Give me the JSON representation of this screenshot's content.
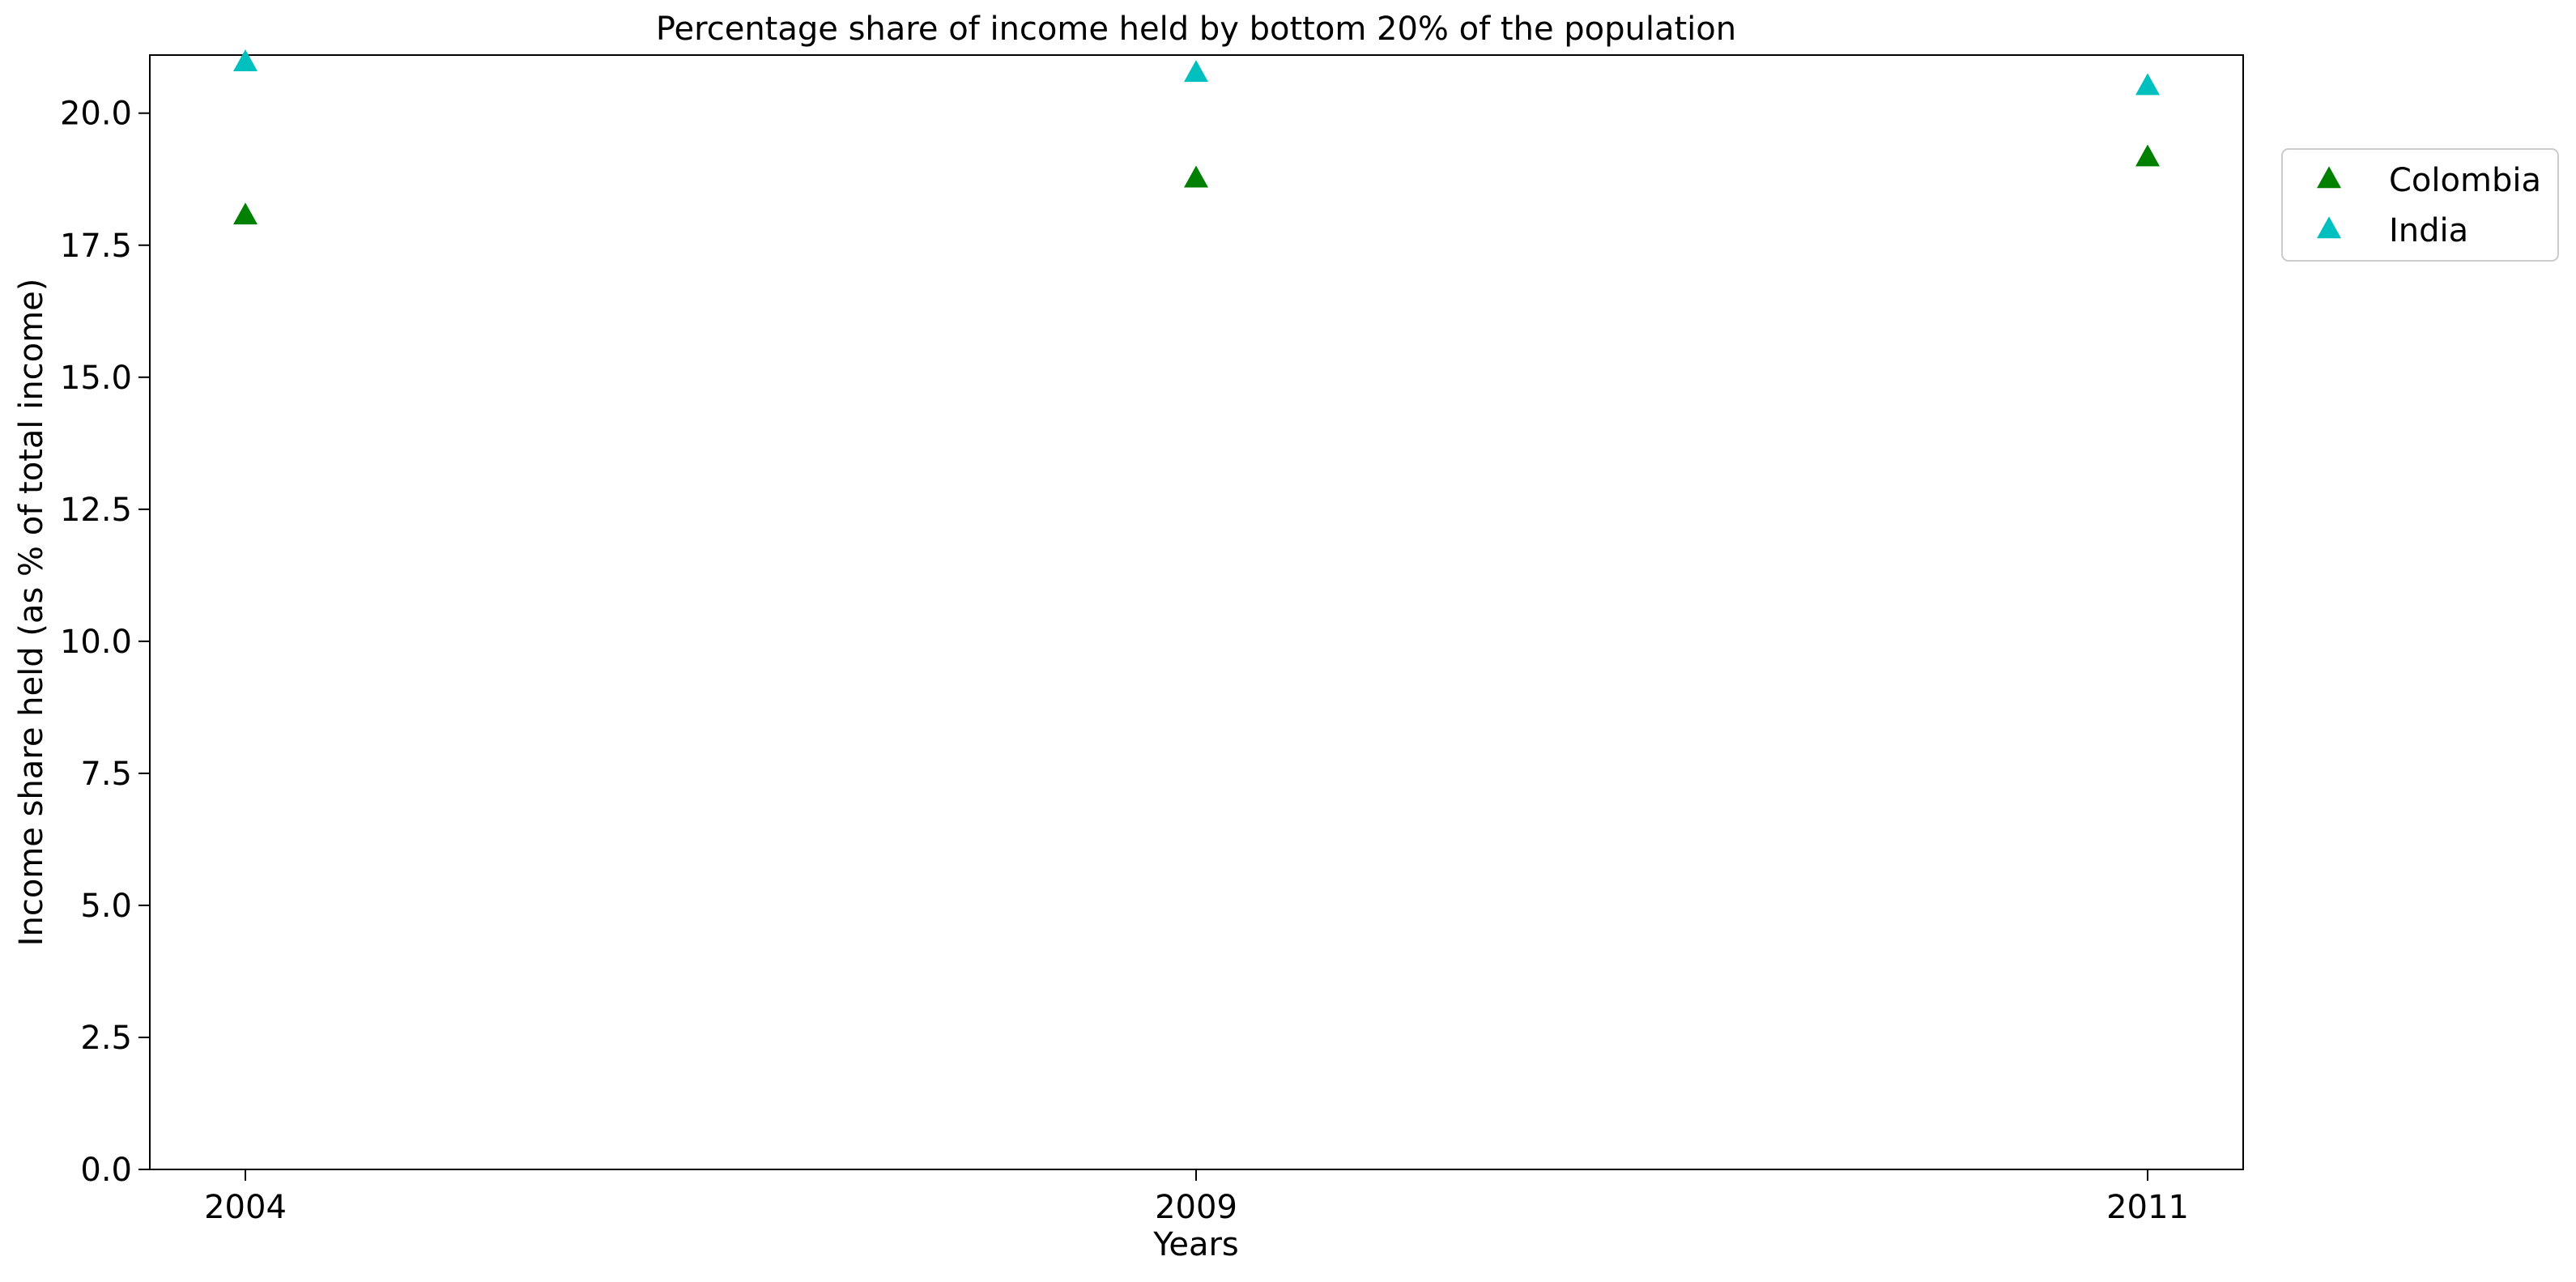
{
  "chart_data": {
    "type": "scatter",
    "title": "Percentage share of income held by bottom 20% of the population",
    "xlabel": "Years",
    "ylabel": "Income share held (as % of total income)",
    "categories": [
      "2004",
      "2009",
      "2011"
    ],
    "ylim": [
      0,
      21.1
    ],
    "yticks": [
      "0.0",
      "2.5",
      "5.0",
      "7.5",
      "10.0",
      "12.5",
      "15.0",
      "17.5",
      "20.0"
    ],
    "grid": false,
    "legend_position": "outside-right-top",
    "marker": "triangle-up",
    "series": [
      {
        "name": "Colombia",
        "color": "#008000",
        "values": [
          18.05,
          18.75,
          19.15
        ]
      },
      {
        "name": "India",
        "color": "#00BFBF",
        "values": [
          20.95,
          20.75,
          20.5
        ]
      }
    ]
  }
}
